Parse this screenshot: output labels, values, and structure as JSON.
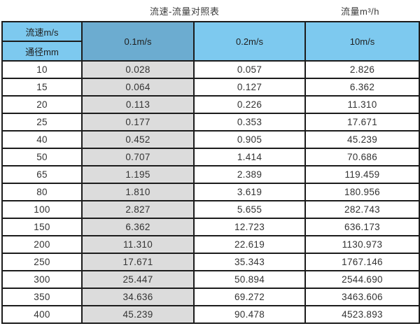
{
  "titles": {
    "left": "流速-流量对照表",
    "right": "流量m³/h"
  },
  "table": {
    "corner_top": "流速m/s",
    "corner_bottom": "通径mm",
    "columns": [
      "0.1m/s",
      "0.2m/s",
      "10m/s"
    ],
    "rows": [
      [
        "10",
        "0.028",
        "0.057",
        "2.826"
      ],
      [
        "15",
        "0.064",
        "0.127",
        "6.362"
      ],
      [
        "20",
        "0.113",
        "0.226",
        "11.310"
      ],
      [
        "25",
        "0.177",
        "0.353",
        "17.671"
      ],
      [
        "40",
        "0.452",
        "0.905",
        "45.239"
      ],
      [
        "50",
        "0.707",
        "1.414",
        "70.686"
      ],
      [
        "65",
        "1.195",
        "2.389",
        "119.459"
      ],
      [
        "80",
        "1.810",
        "3.619",
        "180.956"
      ],
      [
        "100",
        "2.827",
        "5.655",
        "282.743"
      ],
      [
        "150",
        "6.362",
        "12.723",
        "636.173"
      ],
      [
        "200",
        "11.310",
        "22.619",
        "1130.973"
      ],
      [
        "250",
        "17.671",
        "35.343",
        "1767.146"
      ],
      [
        "300",
        "25.447",
        "50.894",
        "2544.690"
      ],
      [
        "350",
        "34.636",
        "69.272",
        "3463.606"
      ],
      [
        "400",
        "45.239",
        "90.478",
        "4523.893"
      ]
    ]
  },
  "colors": {
    "header_blue": "#7dc9ef",
    "header_blue_dark": "#6cacd0",
    "column_gray": "#dcdcdc",
    "border": "#1c1c1c"
  }
}
